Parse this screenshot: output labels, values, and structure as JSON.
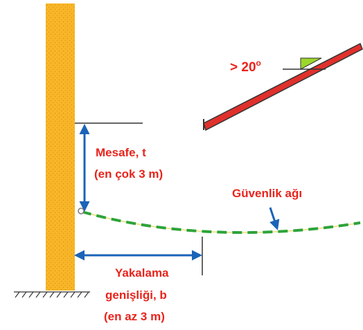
{
  "labels": {
    "angle": "> 20",
    "angle_unit": "o",
    "distance_line1": "Mesafe, t",
    "distance_line2": "(en çok 3 m)",
    "net": "Güvenlik ağı",
    "width_line1": "Yakalama",
    "width_line2": "genişliği, b",
    "width_line3": "(en az 3 m)"
  },
  "colors": {
    "text": "#e8241c",
    "pillar": "#f7b628",
    "pillar_dots": "#e58f14",
    "roof": "#e0302c",
    "angle_fill": "#9bd62c",
    "net": "#2da33a",
    "net_rope": "#e8e07a",
    "dimension": "#1a63b8",
    "line": "#333333"
  }
}
